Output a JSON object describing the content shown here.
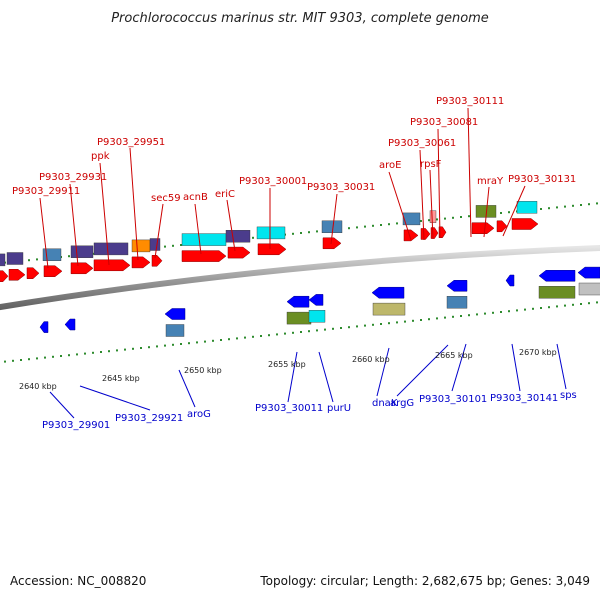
{
  "title": "Prochlorococcus marinus str. MIT 9303, complete genome",
  "accession": "Accession: NC_008820",
  "topology": "Topology: circular; Length: 2,682,675 bp; Genes: 3,049",
  "kbp_labels": [
    "2640 kbp",
    "2645 kbp",
    "2650 kbp",
    "2655 kbp",
    "2660 kbp",
    "2665 kbp",
    "2670 kbp"
  ],
  "top_genes": [
    "P9303_29911",
    "P9303_29931",
    "ppk",
    "P9303_29951",
    "sec59",
    "acnB",
    "eriC",
    "P9303_30001",
    "P9303_30031",
    "aroE",
    "P9303_30061",
    "rpsF",
    "P9303_30081",
    "P9303_30111",
    "mraY",
    "P9303_30131"
  ],
  "bottom_genes": [
    "P9303_29901",
    "P9303_29921",
    "aroG",
    "P9303_30011",
    "purU",
    "dnaK",
    "argG",
    "P9303_30101",
    "P9303_30141",
    "sps"
  ],
  "colors": {
    "forward": "#ff0000",
    "reverse": "#0000ff",
    "top_label": "#cc0000",
    "bottom_label": "#0000cc",
    "cog_purple": "#4b3c8c",
    "cog_cyan": "#00e5ee",
    "cog_steel": "#4682b4",
    "cog_olive": "#6b8e23",
    "cog_khaki": "#bdb76b",
    "cog_orange": "#ff8c00",
    "cog_pink": "#ff9999",
    "cog_gray": "#c0c0c0"
  }
}
